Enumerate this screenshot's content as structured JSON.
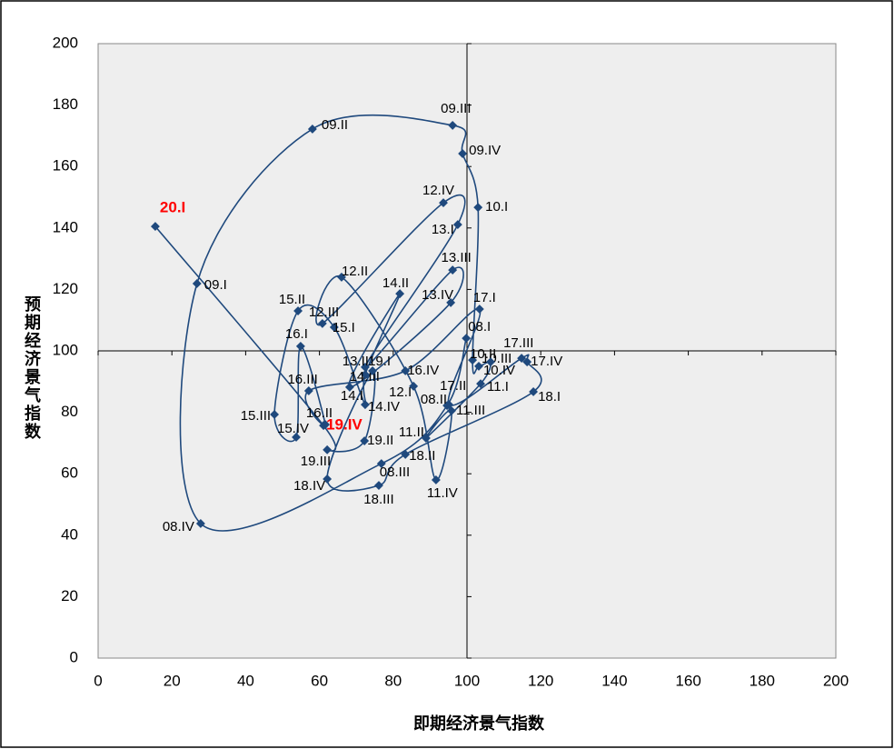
{
  "chart_data": {
    "type": "line",
    "x_label": "即期经济景气指数",
    "y_label": "预期经济景气指数",
    "xlim": [
      0,
      200
    ],
    "ylim": [
      0,
      200
    ],
    "xticks": [
      0,
      20,
      40,
      60,
      80,
      100,
      120,
      140,
      160,
      180,
      200
    ],
    "yticks": [
      0,
      20,
      40,
      60,
      80,
      100,
      120,
      140,
      160,
      180,
      200
    ],
    "cross_at": [
      100,
      100
    ],
    "color": "#1f497d",
    "plot_background": "#eeeeee",
    "highlight_color": "#ff0000",
    "highlighted": [
      47,
      48
    ],
    "series": [
      {
        "labels": [
          "08.I",
          "08.II",
          "08.III",
          "08.IV",
          "09.I",
          "09.II",
          "09.III",
          "09.IV",
          "10.I",
          "10.II",
          "10.III",
          "10.IV",
          "11.I",
          "11.II",
          "11.III",
          "11.IV",
          "12.I",
          "12.II",
          "12.III",
          "12.IV",
          "13.I",
          "13.II",
          "13.III",
          "13.IV",
          "14.I",
          "14.II",
          "14.III",
          "14.IV",
          "15.I",
          "15.II",
          "15.III",
          "15.IV",
          "16.I",
          "16.II",
          "16.III",
          "16.IV",
          "17.I",
          "17.II",
          "17.III",
          "17.IV",
          "18.I",
          "18.II",
          "18.III",
          "18.IV",
          "19.I",
          "19.II",
          "19.III",
          "19.IV",
          "20.I"
        ],
        "x": [
          99.8,
          94.6,
          76.8,
          27.8,
          26.8,
          58.1,
          96.1,
          98.8,
          103.0,
          101.5,
          103.2,
          106.4,
          103.7,
          88.9,
          95.8,
          91.6,
          85.5,
          66.0,
          60.8,
          93.6,
          97.5,
          72.4,
          96.1,
          95.6,
          68.2,
          81.8,
          72.4,
          72.4,
          64.0,
          54.2,
          47.8,
          53.7,
          54.9,
          61.6,
          57.1,
          83.3,
          103.4,
          95.1,
          114.8,
          116.3,
          118.0,
          83.3,
          76.1,
          62.1,
          74.4,
          72.2,
          62.1,
          61.1,
          15.5
        ],
        "values": [
          104.1,
          82.2,
          63.3,
          43.8,
          121.9,
          172.2,
          173.4,
          164.2,
          146.7,
          97.0,
          95.0,
          96.4,
          89.3,
          71.6,
          80.5,
          58.0,
          88.5,
          124.0,
          108.9,
          148.2,
          141.1,
          94.7,
          126.3,
          115.7,
          88.2,
          118.6,
          92.3,
          82.5,
          107.7,
          113.0,
          79.3,
          71.9,
          101.5,
          76.0,
          87.0,
          93.5,
          113.6,
          82.5,
          97.6,
          96.4,
          86.7,
          66.3,
          56.2,
          58.3,
          93.5,
          70.7,
          67.8,
          75.7,
          140.5
        ]
      }
    ]
  }
}
